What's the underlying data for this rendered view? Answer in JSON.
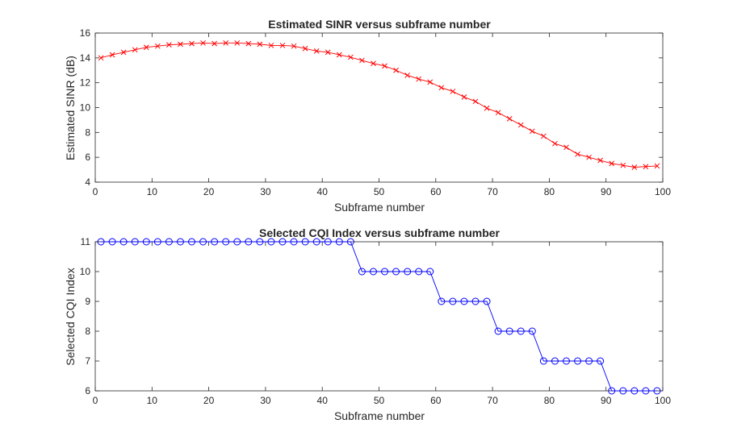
{
  "chart_data": [
    {
      "type": "line",
      "title": "Estimated SINR versus subframe number",
      "xlabel": "Subframe number",
      "ylabel": "Estimated SINR (dB)",
      "xlim": [
        0,
        100
      ],
      "ylim": [
        4,
        16
      ],
      "xticks": [
        0,
        10,
        20,
        30,
        40,
        50,
        60,
        70,
        80,
        90,
        100
      ],
      "yticks": [
        4,
        6,
        8,
        10,
        12,
        14,
        16
      ],
      "grid": false,
      "marker": "x",
      "color": "#ff0000",
      "x": [
        1,
        3,
        5,
        7,
        9,
        11,
        13,
        15,
        17,
        19,
        21,
        23,
        25,
        27,
        29,
        31,
        33,
        35,
        37,
        39,
        41,
        43,
        45,
        47,
        49,
        51,
        53,
        55,
        57,
        59,
        61,
        63,
        65,
        67,
        69,
        71,
        73,
        75,
        77,
        79,
        81,
        83,
        85,
        87,
        89,
        91,
        93,
        95,
        97,
        99
      ],
      "series": [
        {
          "values": [
            14.0,
            14.25,
            14.45,
            14.65,
            14.85,
            14.95,
            15.05,
            15.1,
            15.15,
            15.2,
            15.15,
            15.2,
            15.2,
            15.15,
            15.1,
            15.0,
            15.0,
            14.95,
            14.75,
            14.55,
            14.45,
            14.25,
            14.05,
            13.8,
            13.55,
            13.35,
            13.0,
            12.6,
            12.3,
            12.05,
            11.6,
            11.3,
            10.85,
            10.5,
            9.95,
            9.6,
            9.1,
            8.6,
            8.1,
            7.7,
            7.1,
            6.8,
            6.25,
            6.0,
            5.75,
            5.5,
            5.35,
            5.2,
            5.25,
            5.3
          ]
        }
      ]
    },
    {
      "type": "line",
      "title": "Selected CQI Index versus subframe number",
      "xlabel": "Subframe number",
      "ylabel": "Selected CQI Index",
      "xlim": [
        0,
        100
      ],
      "ylim": [
        6,
        11
      ],
      "xticks": [
        0,
        10,
        20,
        30,
        40,
        50,
        60,
        70,
        80,
        90,
        100
      ],
      "yticks": [
        6,
        7,
        8,
        9,
        10,
        11
      ],
      "grid": false,
      "marker": "o",
      "color": "#0000ff",
      "x": [
        1,
        3,
        5,
        7,
        9,
        11,
        13,
        15,
        17,
        19,
        21,
        23,
        25,
        27,
        29,
        31,
        33,
        35,
        37,
        39,
        41,
        43,
        45,
        47,
        49,
        51,
        53,
        55,
        57,
        59,
        61,
        63,
        65,
        67,
        69,
        71,
        73,
        75,
        77,
        79,
        81,
        83,
        85,
        87,
        89,
        91,
        93,
        95,
        97,
        99
      ],
      "series": [
        {
          "values": [
            11,
            11,
            11,
            11,
            11,
            11,
            11,
            11,
            11,
            11,
            11,
            11,
            11,
            11,
            11,
            11,
            11,
            11,
            11,
            11,
            11,
            11,
            11,
            10,
            10,
            10,
            10,
            10,
            10,
            10,
            9,
            9,
            9,
            9,
            9,
            8,
            8,
            8,
            8,
            7,
            7,
            7,
            7,
            7,
            7,
            6,
            6,
            6,
            6,
            6
          ]
        }
      ]
    }
  ]
}
